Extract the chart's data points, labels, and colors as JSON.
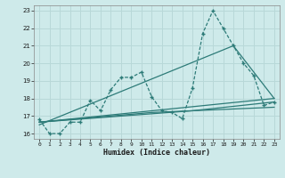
{
  "xlabel": "Humidex (Indice chaleur)",
  "ylabel": "",
  "bg_color": "#ceeaea",
  "grid_color": "#b8d8d8",
  "line_color": "#2d7b78",
  "xlim": [
    -0.5,
    23.5
  ],
  "ylim": [
    15.7,
    23.3
  ],
  "yticks": [
    16,
    17,
    18,
    19,
    20,
    21,
    22,
    23
  ],
  "xticks": [
    0,
    1,
    2,
    3,
    4,
    5,
    6,
    7,
    8,
    9,
    10,
    11,
    12,
    13,
    14,
    15,
    16,
    17,
    18,
    19,
    20,
    21,
    22,
    23
  ],
  "curve1_x": [
    0,
    1,
    2,
    3,
    4,
    5,
    6,
    7,
    8,
    9,
    10,
    11,
    12,
    13,
    14,
    15,
    16,
    17,
    18,
    19,
    20,
    21,
    22,
    23
  ],
  "curve1_y": [
    16.8,
    16.0,
    16.0,
    16.65,
    16.65,
    17.9,
    17.3,
    18.5,
    19.2,
    19.2,
    19.5,
    18.1,
    17.3,
    17.2,
    16.85,
    18.6,
    21.7,
    23.0,
    22.0,
    21.0,
    20.0,
    19.3,
    17.6,
    17.8
  ],
  "trend1_x": [
    0,
    23
  ],
  "trend1_y": [
    16.65,
    18.0
  ],
  "trend2_x": [
    0,
    11,
    23
  ],
  "trend2_y": [
    16.65,
    17.2,
    17.5
  ],
  "trend3_x": [
    0,
    15,
    23
  ],
  "trend3_y": [
    16.65,
    17.3,
    17.8
  ],
  "trend4_x": [
    0,
    19,
    23
  ],
  "trend4_y": [
    16.5,
    21.0,
    18.0
  ]
}
